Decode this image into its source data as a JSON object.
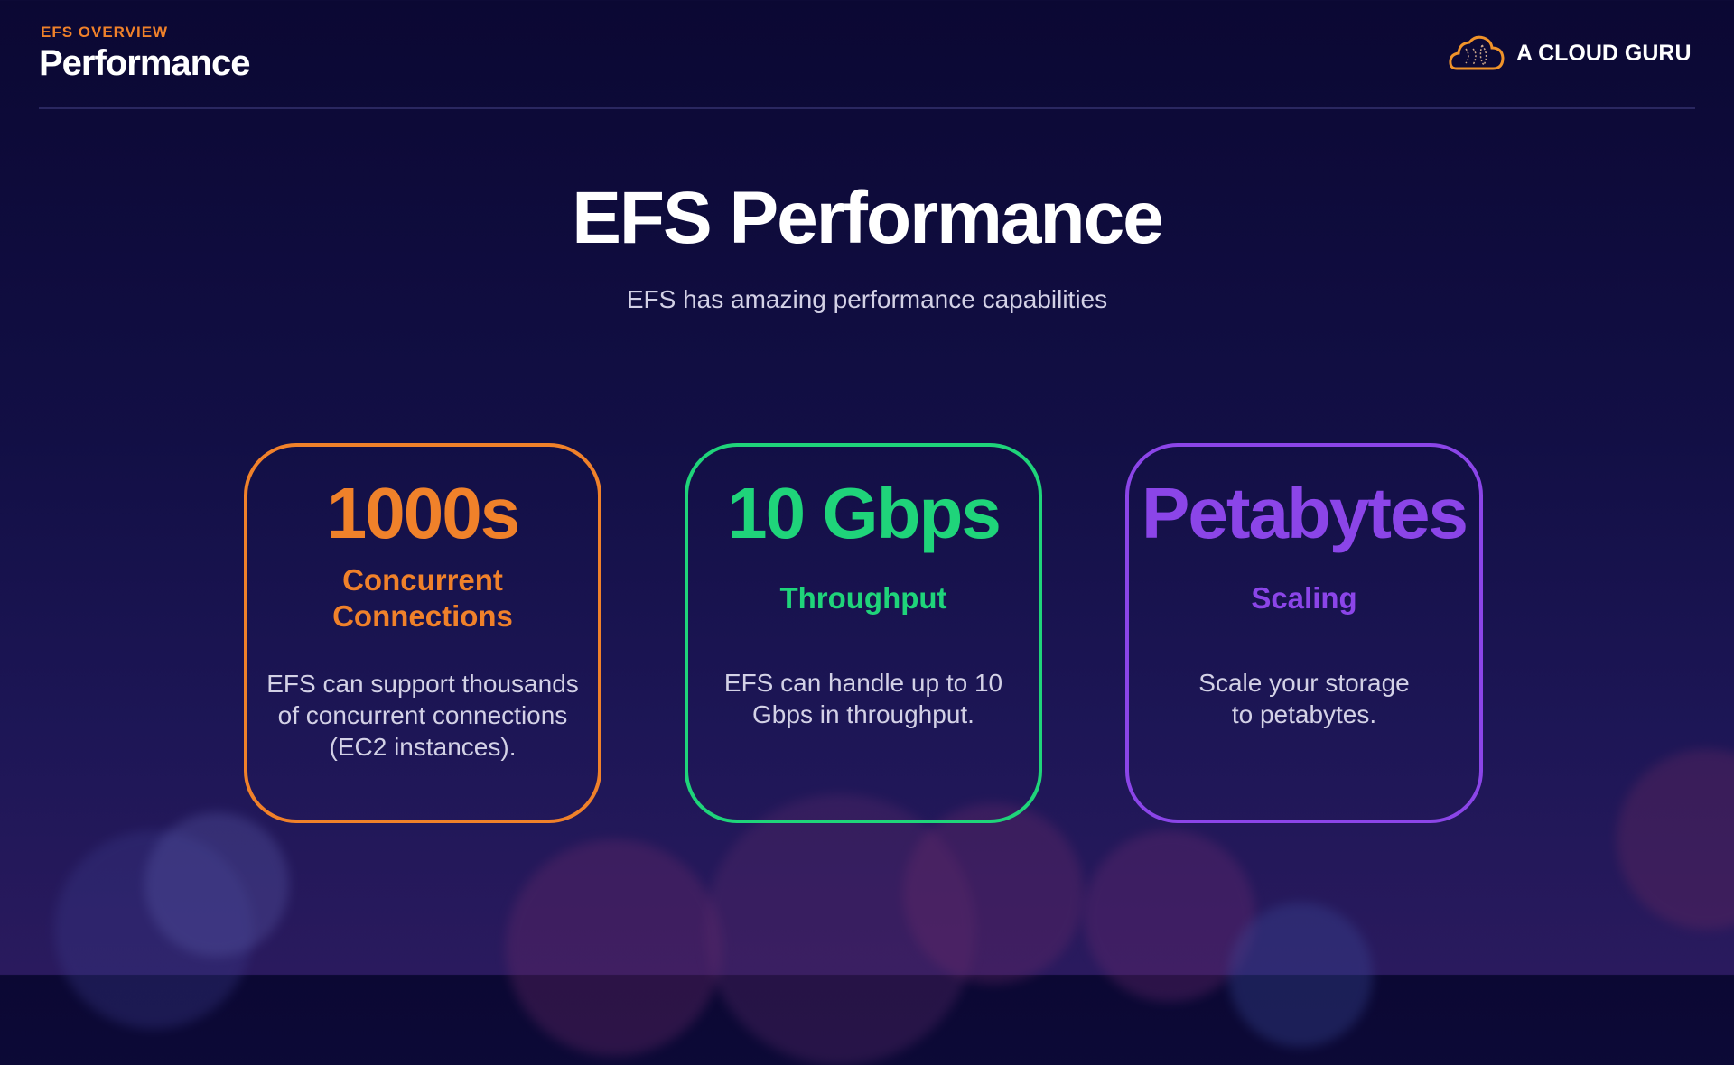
{
  "header": {
    "eyebrow": "EFS OVERVIEW",
    "title": "Performance"
  },
  "logo": {
    "text": "A CLOUD GURU",
    "icon": "cloud-icon"
  },
  "main": {
    "title": "EFS Performance",
    "subtitle": "EFS has amazing performance capabilities"
  },
  "colors": {
    "orange": "#f0812a",
    "green": "#1fd47a",
    "purple": "#8b45e8"
  },
  "cards": [
    {
      "value": "1000s",
      "label_lines": [
        "Concurrent",
        "Connections"
      ],
      "body_lines": [
        "EFS can support thousands",
        "of concurrent connections",
        "(EC2 instances)."
      ]
    },
    {
      "value": "10 Gbps",
      "label_lines": [
        "Throughput"
      ],
      "body_lines": [
        "EFS can handle up to 10",
        "Gbps in throughput."
      ]
    },
    {
      "value": "Petabytes",
      "label_lines": [
        "Scaling"
      ],
      "body_lines": [
        "Scale your storage",
        "to petabytes."
      ]
    }
  ]
}
